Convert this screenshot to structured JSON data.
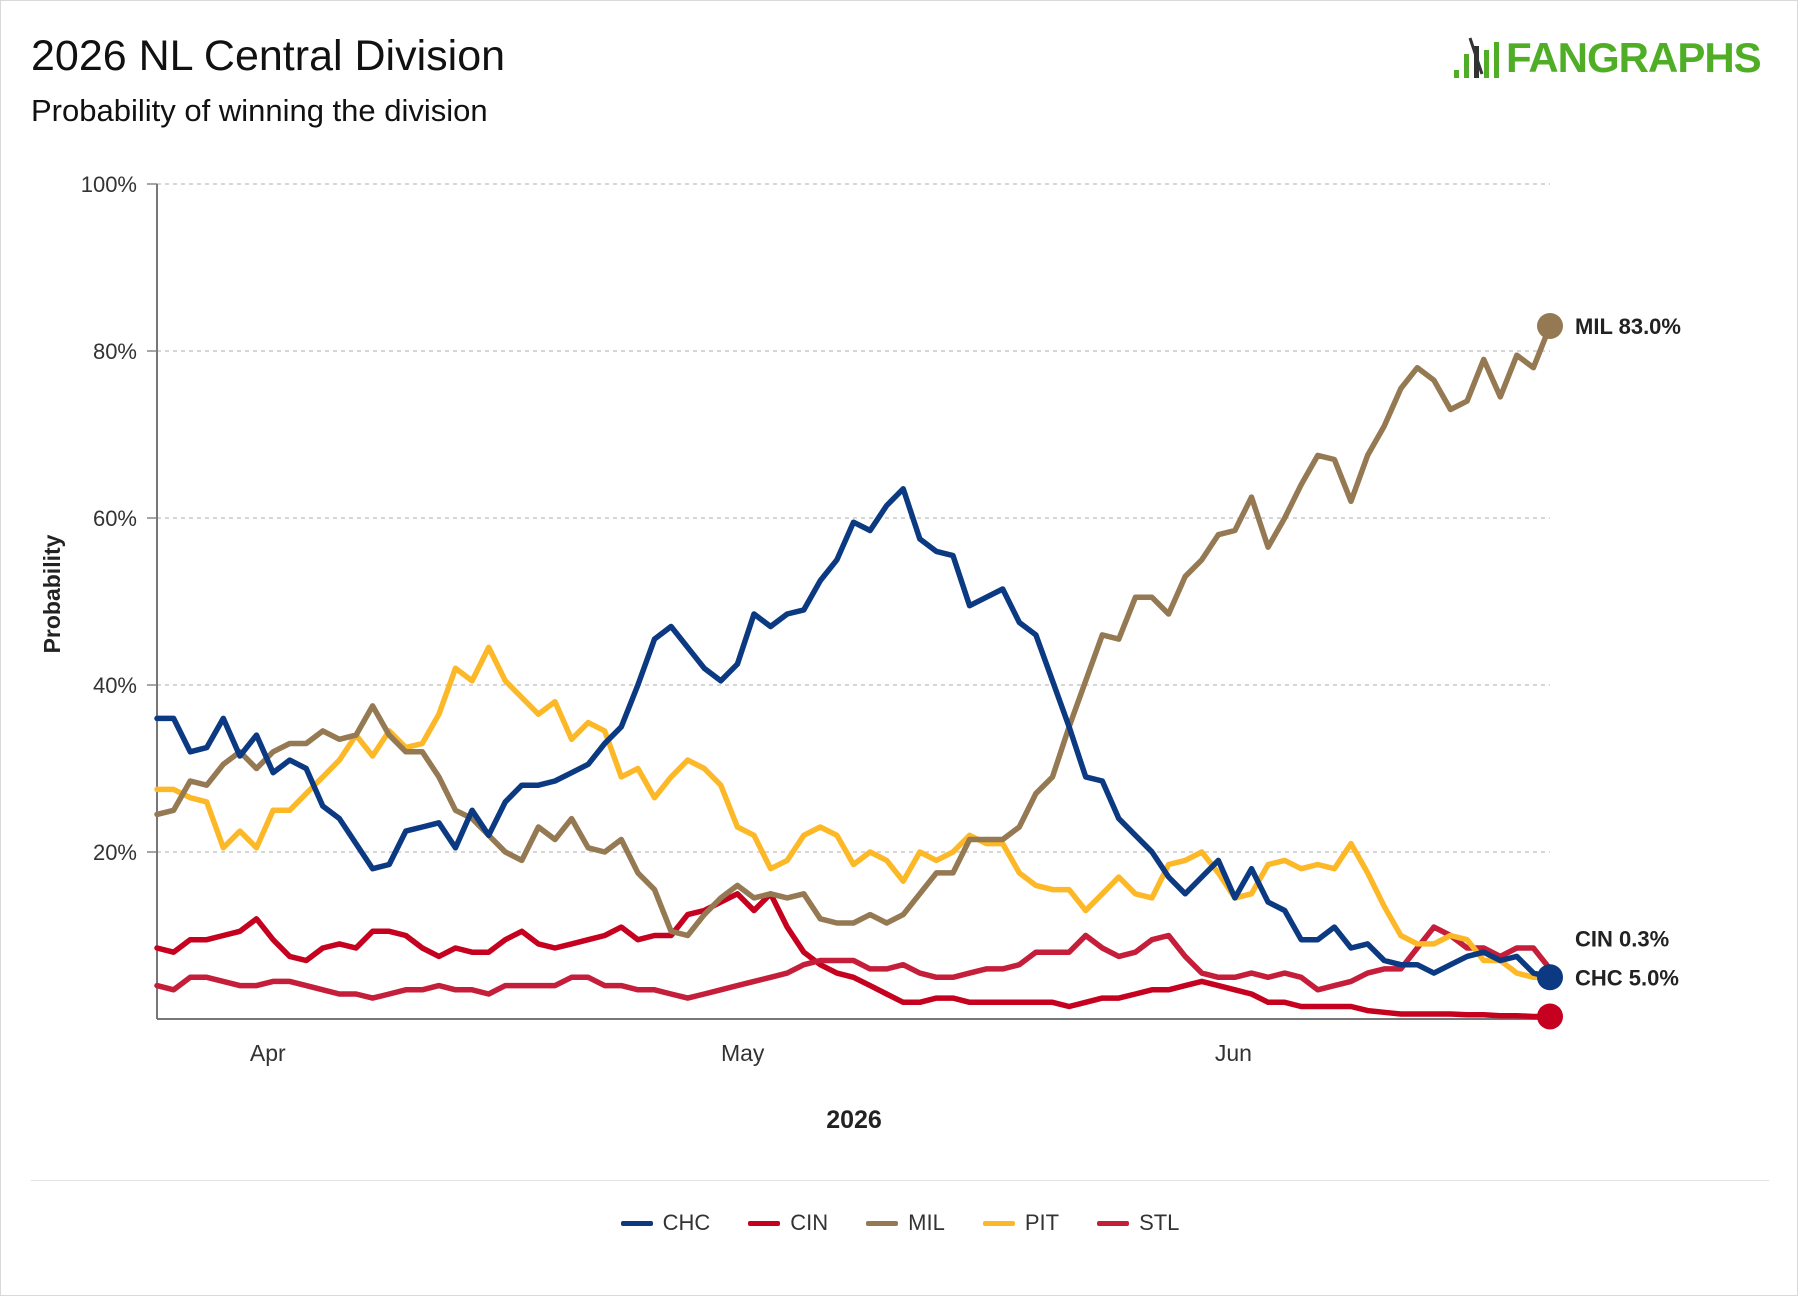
{
  "header": {
    "title": "2026 NL Central Division",
    "subtitle": "Probability of winning the division",
    "logo_text": "FANGRAPHS",
    "logo_color": "#50ae26"
  },
  "chart_data": {
    "type": "line",
    "xlabel": "2026",
    "ylabel": "Probability",
    "ylim": [
      0,
      100
    ],
    "yticks": [
      "100%",
      "80%",
      "60%",
      "40%",
      "20%"
    ],
    "xticks": [
      "Apr",
      "May",
      "Jun"
    ],
    "grid": true,
    "legend_position": "bottom",
    "x_domain": {
      "start": "2026-03-25",
      "end": "2026-06-21"
    },
    "x_tick_dates": [
      "2026-04-01",
      "2026-05-01",
      "2026-06-01"
    ],
    "series": [
      {
        "name": "CHC",
        "color": "#0b3a82",
        "end_label": "CHC 5.0%",
        "values": [
          36,
          36,
          32,
          32.5,
          36,
          31.5,
          34,
          29.5,
          31,
          30,
          25.5,
          24,
          21,
          18,
          18.5,
          22.5,
          23,
          23.5,
          20.5,
          25,
          22,
          26,
          28,
          28,
          28.5,
          29.5,
          30.5,
          33,
          35,
          40,
          45.5,
          47,
          44.5,
          42,
          40.5,
          42.5,
          48.5,
          47,
          48.5,
          49,
          52.5,
          55,
          59.5,
          58.5,
          61.5,
          63.5,
          57.5,
          56,
          55.5,
          49.5,
          50.5,
          51.5,
          47.5,
          46,
          40.5,
          35,
          29,
          28.5,
          24,
          22,
          20,
          17,
          15,
          17,
          19,
          14.5,
          18,
          14,
          13,
          9.5,
          9.5,
          11,
          8.5,
          9,
          7,
          6.5,
          6.5,
          5.5,
          6.5,
          7.5,
          8,
          7,
          7.5,
          5.5,
          5
        ]
      },
      {
        "name": "CIN",
        "color": "#c6011f",
        "end_label": "CIN 0.3%",
        "values": [
          8.5,
          8,
          9.5,
          9.5,
          10,
          10.5,
          12,
          9.5,
          7.5,
          7,
          8.5,
          9,
          8.5,
          10.5,
          10.5,
          10,
          8.5,
          7.5,
          8.5,
          8,
          8,
          9.5,
          10.5,
          9,
          8.5,
          9,
          9.5,
          10,
          11,
          9.5,
          10,
          10,
          12.5,
          13,
          14,
          15,
          13,
          15,
          11,
          8,
          6.5,
          5.5,
          5,
          4,
          3,
          2,
          2,
          2.5,
          2.5,
          2,
          2,
          2,
          2,
          2,
          2,
          1.5,
          2,
          2.5,
          2.5,
          3,
          3.5,
          3.5,
          4,
          4.5,
          4,
          3.5,
          3,
          2,
          2,
          1.5,
          1.5,
          1.5,
          1.5,
          1,
          0.8,
          0.6,
          0.6,
          0.6,
          0.6,
          0.5,
          0.5,
          0.4,
          0.4,
          0.3,
          0.3
        ]
      },
      {
        "name": "MIL",
        "color": "#957953",
        "end_label": "MIL 83.0%",
        "values": [
          24.5,
          25,
          28.5,
          28,
          30.5,
          32,
          30,
          32,
          33,
          33,
          34.5,
          33.5,
          34,
          37.5,
          34,
          32,
          32,
          29,
          25,
          24,
          22,
          20,
          19,
          23,
          21.5,
          24,
          20.5,
          20,
          21.5,
          17.5,
          15.5,
          10.5,
          10,
          12.5,
          14.5,
          16,
          14.5,
          15,
          14.5,
          15,
          12,
          11.5,
          11.5,
          12.5,
          11.5,
          12.5,
          15,
          17.5,
          17.5,
          21.5,
          21.5,
          21.5,
          23,
          27,
          29,
          35,
          40.5,
          46,
          45.5,
          50.5,
          50.5,
          48.5,
          53,
          55,
          58,
          58.5,
          62.5,
          56.5,
          60,
          64,
          67.5,
          67,
          62,
          67.5,
          71,
          75.5,
          78,
          76.5,
          73,
          74,
          79,
          74.5,
          79.5,
          78,
          83
        ]
      },
      {
        "name": "PIT",
        "color": "#fdb827",
        "end_label": "PIT",
        "values": [
          27.5,
          27.5,
          26.5,
          26,
          20.5,
          22.5,
          20.5,
          25,
          25,
          27,
          29,
          31,
          34,
          31.5,
          34.5,
          32.5,
          33,
          36.5,
          42,
          40.5,
          44.5,
          40.5,
          38.5,
          36.5,
          38,
          33.5,
          35.5,
          34.5,
          29,
          30,
          26.5,
          29,
          31,
          30,
          28,
          23,
          22,
          18,
          19,
          22,
          23,
          22,
          18.5,
          20,
          19,
          16.5,
          20,
          19,
          20,
          22,
          21,
          21,
          17.5,
          16,
          15.5,
          15.5,
          13,
          15,
          17,
          15,
          14.5,
          18.5,
          19,
          20,
          17.5,
          14.5,
          15,
          18.5,
          19,
          18,
          18.5,
          18,
          21,
          17.5,
          13.5,
          10,
          9,
          9,
          10,
          9.5,
          7,
          7,
          5.5,
          5,
          5
        ]
      },
      {
        "name": "STL",
        "color": "#c41e3a",
        "end_label": "STL",
        "values": [
          4,
          3.5,
          5,
          5,
          4.5,
          4,
          4,
          4.5,
          4.5,
          4,
          3.5,
          3,
          3,
          2.5,
          3,
          3.5,
          3.5,
          4,
          3.5,
          3.5,
          3,
          4,
          4,
          4,
          4,
          5,
          5,
          4,
          4,
          3.5,
          3.5,
          3,
          2.5,
          3,
          3.5,
          4,
          4.5,
          5,
          5.5,
          6.5,
          7,
          7,
          7,
          6,
          6,
          6.5,
          5.5,
          5,
          5,
          5.5,
          6,
          6,
          6.5,
          8,
          8,
          8,
          10,
          8.5,
          7.5,
          8,
          9.5,
          10,
          7.5,
          5.5,
          5,
          5,
          5.5,
          5,
          5.5,
          5,
          3.5,
          4,
          4.5,
          5.5,
          6,
          6,
          8.5,
          11,
          10,
          8.5,
          8.5,
          7.5,
          8.5,
          8.5,
          6
        ]
      }
    ]
  }
}
